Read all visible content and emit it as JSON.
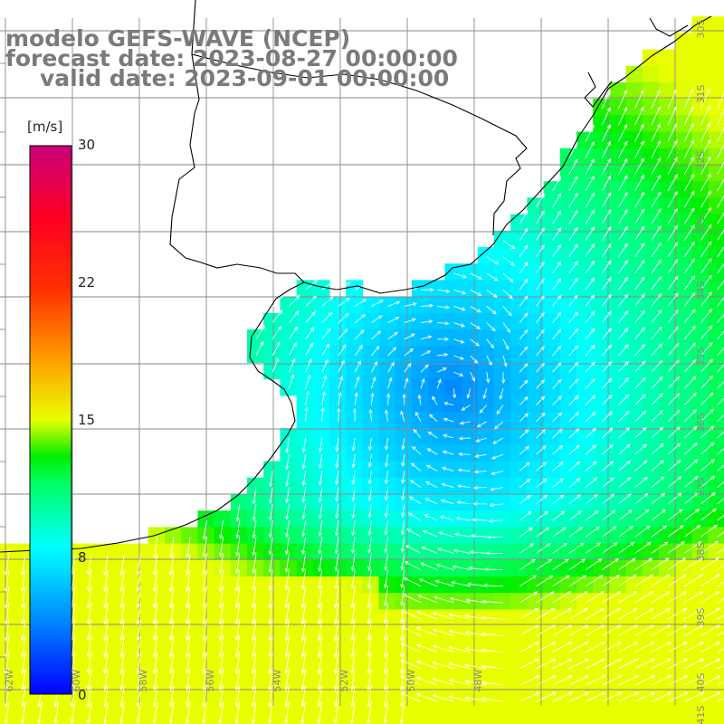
{
  "title": {
    "model": "modelo GEFS-WAVE (NCEP)",
    "forecast": "forecast date: 2023-08-27 00:00:00",
    "valid": "valid date: 2023-09-01 00:00:00"
  },
  "colorbar": {
    "unit": "[m/s]",
    "ticks": [
      "30",
      "22",
      "15",
      "8",
      "0"
    ],
    "tick_values": [
      30,
      22,
      15,
      8,
      0
    ],
    "range": [
      0,
      30
    ],
    "stops": [
      {
        "value": 0,
        "color": "#0000ff"
      },
      {
        "value": 4,
        "color": "#0088ff"
      },
      {
        "value": 8,
        "color": "#00ffff"
      },
      {
        "value": 11.5,
        "color": "#00ff66"
      },
      {
        "value": 13,
        "color": "#00ee00"
      },
      {
        "value": 15,
        "color": "#e8ff00"
      },
      {
        "value": 18.5,
        "color": "#ff9900"
      },
      {
        "value": 22,
        "color": "#ff3300"
      },
      {
        "value": 26,
        "color": "#ff0022"
      },
      {
        "value": 30,
        "color": "#c8007a"
      }
    ]
  },
  "map": {
    "region": "southern Brazil / Uruguay / Rio de la Plata coast",
    "grid_color": "#8a8a8a",
    "coastline_color": "#000000",
    "vector_color": "#ffffff",
    "lat_labels": [
      "30S",
      "31S",
      "32S",
      "33S",
      "34S",
      "35S",
      "36S",
      "37S",
      "38S",
      "39S",
      "40S",
      "41S"
    ],
    "lon_labels": [
      "62W",
      "60W",
      "58W",
      "56W",
      "54W",
      "52W",
      "50W",
      "48W"
    ]
  }
}
